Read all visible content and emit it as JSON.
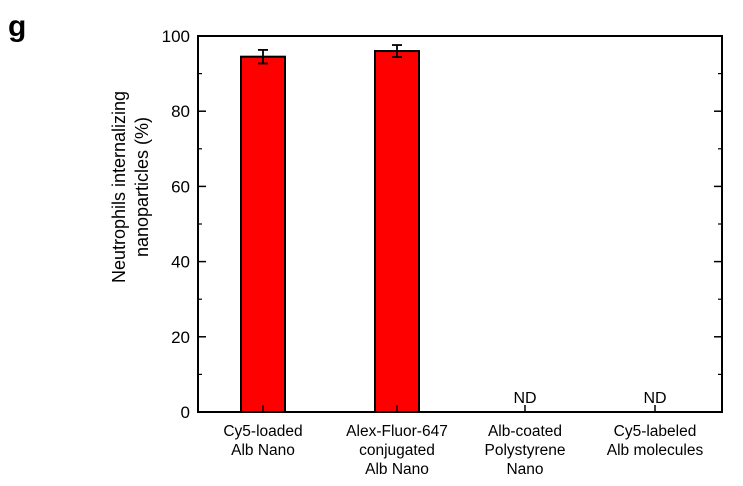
{
  "panel_label": "g",
  "chart_data": {
    "type": "bar",
    "title": "",
    "ylabel_lines": [
      "Neutrophils internalizing",
      "nanoparticles (%)"
    ],
    "xlabel": "",
    "ylim": [
      0,
      100
    ],
    "yticks": [
      0,
      20,
      40,
      60,
      80,
      100
    ],
    "categories": [
      [
        "Cy5-loaded",
        "Alb Nano"
      ],
      [
        "Alex-Fluor-647",
        "conjugated",
        "Alb Nano"
      ],
      [
        "Alb-coated",
        "Polystyrene",
        "Nano"
      ],
      [
        "Cy5-labeled",
        "Alb molecules"
      ]
    ],
    "values": [
      94.5,
      96,
      null,
      null
    ],
    "errors": [
      1.8,
      1.6,
      null,
      null
    ],
    "annotations": [
      "",
      "",
      "ND",
      "ND"
    ],
    "bar_color": "#ff0000",
    "grid": false,
    "legend": "none"
  }
}
